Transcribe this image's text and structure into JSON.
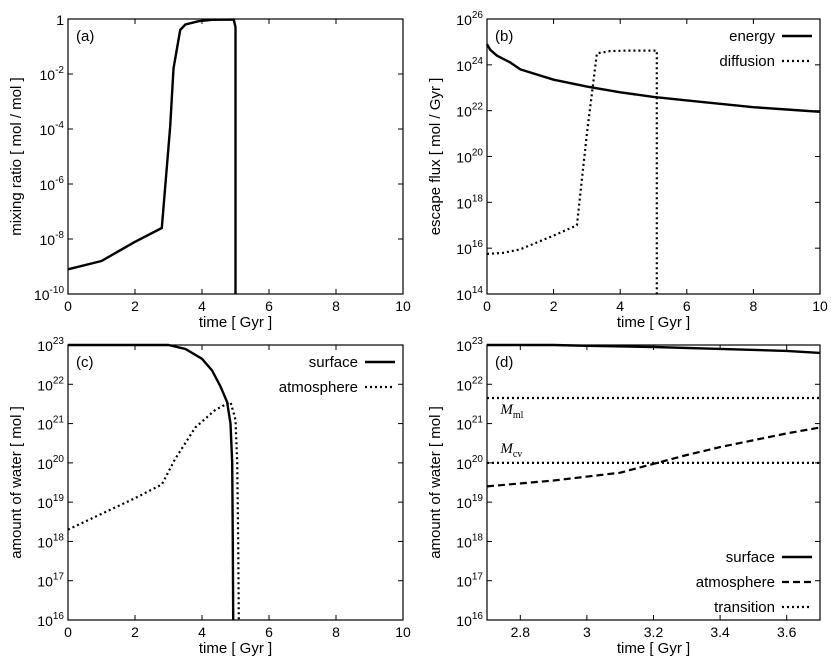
{
  "chart_data": [
    {
      "id": "a",
      "type": "line",
      "panel_label": "(a)",
      "xlabel": "time [ Gyr ]",
      "ylabel": "mixing ratio  [ mol / mol ]",
      "xlim": [
        0,
        10
      ],
      "ylim_log10": [
        -10,
        0
      ],
      "yscale": "log",
      "x_ticks": [
        "0",
        "2",
        "4",
        "6",
        "8",
        "10"
      ],
      "y_ticks": [
        {
          "base": "10",
          "exp": "-10"
        },
        {
          "base": "10",
          "exp": "-8"
        },
        {
          "base": "10",
          "exp": "-6"
        },
        {
          "base": "10",
          "exp": "-4"
        },
        {
          "base": "10",
          "exp": "-2"
        },
        {
          "base": "1",
          "exp": ""
        }
      ],
      "legend": [],
      "series": [
        {
          "name": "mixing ratio",
          "style": "solid",
          "points": [
            [
              0,
              -9.1
            ],
            [
              1,
              -8.8
            ],
            [
              2,
              -8.1
            ],
            [
              2.8,
              -7.6
            ],
            [
              3.05,
              -3.9
            ],
            [
              3.15,
              -1.8
            ],
            [
              3.35,
              -0.4
            ],
            [
              3.5,
              -0.2
            ],
            [
              3.9,
              -0.08
            ],
            [
              4.3,
              -0.03
            ],
            [
              4.95,
              -0.02
            ],
            [
              5.0,
              -0.3
            ],
            [
              5.0,
              -10
            ]
          ]
        }
      ]
    },
    {
      "id": "b",
      "type": "line",
      "panel_label": "(b)",
      "xlabel": "time [ Gyr ]",
      "ylabel": "escape flux  [ mol / Gyr ]",
      "xlim": [
        0,
        10
      ],
      "ylim_log10": [
        14,
        26
      ],
      "yscale": "log",
      "x_ticks": [
        "0",
        "2",
        "4",
        "6",
        "8",
        "10"
      ],
      "y_ticks": [
        {
          "base": "10",
          "exp": "14"
        },
        {
          "base": "10",
          "exp": "16"
        },
        {
          "base": "10",
          "exp": "18"
        },
        {
          "base": "10",
          "exp": "20"
        },
        {
          "base": "10",
          "exp": "22"
        },
        {
          "base": "10",
          "exp": "24"
        },
        {
          "base": "10",
          "exp": "26"
        }
      ],
      "legend": [
        "energy",
        "diffusion"
      ],
      "series": [
        {
          "name": "energy",
          "style": "solid",
          "points": [
            [
              0,
              24.9
            ],
            [
              0.1,
              24.65
            ],
            [
              0.3,
              24.4
            ],
            [
              0.5,
              24.25
            ],
            [
              0.7,
              24.1
            ],
            [
              1,
              23.8
            ],
            [
              2,
              23.35
            ],
            [
              3,
              23.05
            ],
            [
              4,
              22.8
            ],
            [
              5,
              22.6
            ],
            [
              6,
              22.45
            ],
            [
              7,
              22.3
            ],
            [
              8,
              22.15
            ],
            [
              9,
              22.05
            ],
            [
              10,
              21.95
            ]
          ]
        },
        {
          "name": "diffusion",
          "style": "dotted",
          "points": [
            [
              0,
              15.75
            ],
            [
              0.5,
              15.8
            ],
            [
              1,
              15.95
            ],
            [
              2,
              16.55
            ],
            [
              2.7,
              17.0
            ],
            [
              3.0,
              21.0
            ],
            [
              3.3,
              24.5
            ],
            [
              3.7,
              24.6
            ],
            [
              4.2,
              24.62
            ],
            [
              5.1,
              24.62
            ],
            [
              5.1,
              14
            ]
          ]
        }
      ]
    },
    {
      "id": "c",
      "type": "line",
      "panel_label": "(c)",
      "xlabel": "time [ Gyr ]",
      "ylabel": "amount of water [ mol ]",
      "xlim": [
        0,
        10
      ],
      "ylim_log10": [
        16,
        23
      ],
      "yscale": "log",
      "x_ticks": [
        "0",
        "2",
        "4",
        "6",
        "8",
        "10"
      ],
      "y_ticks": [
        {
          "base": "10",
          "exp": "16"
        },
        {
          "base": "10",
          "exp": "17"
        },
        {
          "base": "10",
          "exp": "18"
        },
        {
          "base": "10",
          "exp": "19"
        },
        {
          "base": "10",
          "exp": "20"
        },
        {
          "base": "10",
          "exp": "21"
        },
        {
          "base": "10",
          "exp": "22"
        },
        {
          "base": "10",
          "exp": "23"
        }
      ],
      "legend": [
        "surface",
        "atmosphere"
      ],
      "series": [
        {
          "name": "surface",
          "style": "solid",
          "points": [
            [
              0,
              23.0
            ],
            [
              3.0,
              23.0
            ],
            [
              3.5,
              22.9
            ],
            [
              4.0,
              22.65
            ],
            [
              4.3,
              22.35
            ],
            [
              4.55,
              21.95
            ],
            [
              4.75,
              21.55
            ],
            [
              4.85,
              21.0
            ],
            [
              4.9,
              20.0
            ],
            [
              4.92,
              18.0
            ],
            [
              4.93,
              16.0
            ]
          ]
        },
        {
          "name": "atmosphere",
          "style": "dotted",
          "points": [
            [
              0,
              18.3
            ],
            [
              1,
              18.7
            ],
            [
              2,
              19.1
            ],
            [
              2.8,
              19.45
            ],
            [
              3.2,
              20.1
            ],
            [
              3.8,
              20.9
            ],
            [
              4.4,
              21.35
            ],
            [
              4.85,
              21.55
            ],
            [
              5.0,
              21.1
            ],
            [
              5.05,
              20.0
            ],
            [
              5.08,
              18.0
            ],
            [
              5.1,
              16.0
            ]
          ]
        }
      ]
    },
    {
      "id": "d",
      "type": "line",
      "panel_label": "(d)",
      "xlabel": "time [ Gyr ]",
      "ylabel": "amount of water [ mol ]",
      "xlim": [
        2.7,
        3.7
      ],
      "ylim_log10": [
        16,
        23
      ],
      "yscale": "log",
      "x_ticks": [
        "2.8",
        "3",
        "3.2",
        "3.4",
        "3.6"
      ],
      "x_tick_values": [
        2.8,
        3.0,
        3.2,
        3.4,
        3.6
      ],
      "y_ticks": [
        {
          "base": "10",
          "exp": "16"
        },
        {
          "base": "10",
          "exp": "17"
        },
        {
          "base": "10",
          "exp": "18"
        },
        {
          "base": "10",
          "exp": "19"
        },
        {
          "base": "10",
          "exp": "20"
        },
        {
          "base": "10",
          "exp": "21"
        },
        {
          "base": "10",
          "exp": "22"
        },
        {
          "base": "10",
          "exp": "23"
        }
      ],
      "legend": [
        "surface",
        "atmosphere",
        "transition"
      ],
      "annotations": [
        {
          "text": "M",
          "sub": "ml",
          "x_data": 2.74,
          "y_log10": 21.25
        },
        {
          "text": "M",
          "sub": "cv",
          "x_data": 2.74,
          "y_log10": 20.25
        }
      ],
      "series": [
        {
          "name": "surface",
          "style": "solid",
          "points": [
            [
              2.7,
              23.0
            ],
            [
              2.9,
              23.0
            ],
            [
              3.0,
              22.98
            ],
            [
              3.2,
              22.95
            ],
            [
              3.4,
              22.9
            ],
            [
              3.6,
              22.85
            ],
            [
              3.7,
              22.8
            ]
          ]
        },
        {
          "name": "atmosphere",
          "style": "dashed",
          "points": [
            [
              2.7,
              19.4
            ],
            [
              2.9,
              19.55
            ],
            [
              3.1,
              19.75
            ],
            [
              3.3,
              20.2
            ],
            [
              3.4,
              20.4
            ],
            [
              3.6,
              20.75
            ],
            [
              3.7,
              20.9
            ]
          ]
        },
        {
          "name": "transition",
          "style": "dotted",
          "points": [
            [
              2.7,
              21.65
            ],
            [
              3.7,
              21.65
            ]
          ]
        },
        {
          "name": "transition",
          "style": "dotted",
          "points": [
            [
              2.7,
              20.0
            ],
            [
              3.7,
              20.0
            ]
          ]
        }
      ]
    }
  ]
}
